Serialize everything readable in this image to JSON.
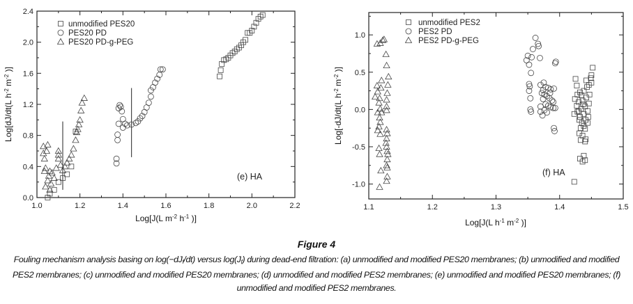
{
  "chart_data": [
    {
      "type": "scatter",
      "panel": "(e) HA",
      "xlabel": [
        "Log[J(L m",
        "-2",
        "h",
        "-1",
        ")]"
      ],
      "ylabel": [
        "Log[dJ/dt(L h",
        "-2",
        "m",
        "-2",
        ")]"
      ],
      "xlim": [
        1.0,
        2.2
      ],
      "ylim": [
        0.0,
        2.4
      ],
      "xticks": [
        "1.0",
        "1.2",
        "1.4",
        "1.6",
        "1.8",
        "2.0",
        "2.2"
      ],
      "yticks": [
        "0.0",
        "0.4",
        "0.8",
        "1.2",
        "1.6",
        "2.0",
        "2.4"
      ],
      "grid": false,
      "legend_position": "top-left",
      "vertical_markers_x": [
        1.12,
        1.44
      ],
      "series": [
        {
          "name": "unmodified PES20",
          "marker": "square",
          "points": [
            [
              1.05,
              0.0
            ],
            [
              1.06,
              0.05
            ],
            [
              1.08,
              0.1
            ],
            [
              1.1,
              0.2
            ],
            [
              1.12,
              0.25
            ],
            [
              1.14,
              0.3
            ],
            [
              1.16,
              0.4
            ],
            [
              1.18,
              0.85
            ],
            [
              1.85,
              1.56
            ],
            [
              1.855,
              1.64
            ],
            [
              1.86,
              1.72
            ],
            [
              1.87,
              1.77
            ],
            [
              1.88,
              1.78
            ],
            [
              1.89,
              1.8
            ],
            [
              1.9,
              1.83
            ],
            [
              1.91,
              1.86
            ],
            [
              1.92,
              1.88
            ],
            [
              1.93,
              1.91
            ],
            [
              1.94,
              1.93
            ],
            [
              1.95,
              1.96
            ],
            [
              1.96,
              2.0
            ],
            [
              1.97,
              2.03
            ],
            [
              1.98,
              2.12
            ],
            [
              1.99,
              2.12
            ],
            [
              2.0,
              2.15
            ],
            [
              2.01,
              2.2
            ],
            [
              2.02,
              2.25
            ],
            [
              2.03,
              2.3
            ],
            [
              2.04,
              2.33
            ],
            [
              2.05,
              2.35
            ]
          ]
        },
        {
          "name": "PES20 PD",
          "marker": "circle",
          "points": [
            [
              1.37,
              0.44
            ],
            [
              1.37,
              0.5
            ],
            [
              1.375,
              0.74
            ],
            [
              1.375,
              0.81
            ],
            [
              1.38,
              0.95
            ],
            [
              1.38,
              1.15
            ],
            [
              1.385,
              1.19
            ],
            [
              1.39,
              1.17
            ],
            [
              1.395,
              1.11
            ],
            [
              1.4,
              1.01
            ],
            [
              1.4,
              0.9
            ],
            [
              1.41,
              0.95
            ],
            [
              1.42,
              0.93
            ],
            [
              1.44,
              0.94
            ],
            [
              1.46,
              0.96
            ],
            [
              1.47,
              0.98
            ],
            [
              1.48,
              1.02
            ],
            [
              1.49,
              1.05
            ],
            [
              1.5,
              1.1
            ],
            [
              1.51,
              1.16
            ],
            [
              1.52,
              1.22
            ],
            [
              1.53,
              1.3
            ],
            [
              1.53,
              1.38
            ],
            [
              1.54,
              1.42
            ],
            [
              1.55,
              1.48
            ],
            [
              1.56,
              1.53
            ],
            [
              1.57,
              1.58
            ],
            [
              1.575,
              1.65
            ],
            [
              1.585,
              1.65
            ]
          ]
        },
        {
          "name": "PES20 PD-g-PEG",
          "marker": "triangle",
          "points": [
            [
              1.03,
              0.66
            ],
            [
              1.03,
              0.57
            ],
            [
              1.035,
              0.5
            ],
            [
              1.04,
              0.38
            ],
            [
              1.035,
              0.34
            ],
            [
              1.04,
              0.14
            ],
            [
              1.045,
              0.6
            ],
            [
              1.05,
              0.68
            ],
            [
              1.05,
              0.22
            ],
            [
              1.055,
              0.28
            ],
            [
              1.06,
              0.34
            ],
            [
              1.06,
              0.1
            ],
            [
              1.065,
              0.18
            ],
            [
              1.07,
              0.32
            ],
            [
              1.08,
              0.25
            ],
            [
              1.09,
              0.38
            ],
            [
              1.1,
              0.6
            ],
            [
              1.1,
              0.55
            ],
            [
              1.1,
              0.5
            ],
            [
              1.11,
              0.42
            ],
            [
              1.12,
              0.35
            ],
            [
              1.13,
              0.4
            ],
            [
              1.14,
              0.45
            ],
            [
              1.15,
              0.5
            ],
            [
              1.16,
              0.55
            ],
            [
              1.17,
              0.63
            ],
            [
              1.18,
              0.74
            ],
            [
              1.185,
              0.84
            ],
            [
              1.19,
              0.88
            ],
            [
              1.195,
              0.94
            ],
            [
              1.2,
              1.0
            ],
            [
              1.205,
              1.12
            ],
            [
              1.21,
              1.22
            ],
            [
              1.22,
              1.28
            ]
          ]
        }
      ]
    },
    {
      "type": "scatter",
      "panel": "(f) HA",
      "xlabel": [
        "Log[J(L h",
        "-1",
        "m",
        "-2",
        ")]"
      ],
      "ylabel": [
        "Log[-dJ/dt(L h",
        "-2",
        "m",
        "-2",
        ")]"
      ],
      "xlim": [
        1.1,
        1.5
      ],
      "ylim": [
        -1.2,
        1.3
      ],
      "xticks": [
        "1.1",
        "1.2",
        "1.3",
        "1.4",
        "1.5"
      ],
      "yticks": [
        "-1.0",
        "-0.5",
        "0.0",
        "0.5",
        "1.0"
      ],
      "grid": false,
      "legend_position": "top-left",
      "series": [
        {
          "name": "unmodified PES2",
          "marker": "square",
          "points": [
            [
              1.452,
              0.56
            ],
            [
              1.45,
              0.46
            ],
            [
              1.449,
              0.42
            ],
            [
              1.442,
              0.39
            ],
            [
              1.425,
              0.41
            ],
            [
              1.427,
              0.32
            ],
            [
              1.45,
              0.36
            ],
            [
              1.446,
              0.33
            ],
            [
              1.443,
              0.3
            ],
            [
              1.438,
              0.25
            ],
            [
              1.432,
              0.23
            ],
            [
              1.428,
              0.2
            ],
            [
              1.424,
              0.14
            ],
            [
              1.447,
              0.2
            ],
            [
              1.442,
              0.16
            ],
            [
              1.436,
              0.12
            ],
            [
              1.43,
              0.1
            ],
            [
              1.427,
              0.05
            ],
            [
              1.446,
              0.08
            ],
            [
              1.44,
              0.04
            ],
            [
              1.434,
              0.01
            ],
            [
              1.43,
              -0.02
            ],
            [
              1.423,
              -0.06
            ],
            [
              1.444,
              -0.02
            ],
            [
              1.438,
              -0.06
            ],
            [
              1.432,
              -0.1
            ],
            [
              1.445,
              -0.1
            ],
            [
              1.441,
              -0.14
            ],
            [
              1.435,
              -0.18
            ],
            [
              1.431,
              -0.14
            ],
            [
              1.444,
              -0.18
            ],
            [
              1.438,
              -0.22
            ],
            [
              1.433,
              -0.25
            ],
            [
              1.44,
              -0.26
            ],
            [
              1.431,
              -0.32
            ],
            [
              1.436,
              -0.35
            ],
            [
              1.441,
              -0.4
            ],
            [
              1.44,
              -0.43
            ],
            [
              1.433,
              -0.41
            ],
            [
              1.438,
              -0.62
            ],
            [
              1.432,
              -0.66
            ],
            [
              1.436,
              -0.7
            ],
            [
              1.44,
              -0.68
            ],
            [
              1.423,
              -0.97
            ],
            [
              1.434,
              0.19
            ],
            [
              1.437,
              0.07
            ],
            [
              1.428,
              -0.03
            ]
          ]
        },
        {
          "name": "PES2 PD",
          "marker": "circle",
          "points": [
            [
              1.362,
              0.96
            ],
            [
              1.366,
              0.88
            ],
            [
              1.367,
              0.85
            ],
            [
              1.358,
              0.81
            ],
            [
              1.35,
              0.72
            ],
            [
              1.356,
              0.7
            ],
            [
              1.369,
              0.69
            ],
            [
              1.348,
              0.66
            ],
            [
              1.352,
              0.6
            ],
            [
              1.394,
              0.64
            ],
            [
              1.393,
              0.62
            ],
            [
              1.355,
              0.49
            ],
            [
              1.352,
              0.34
            ],
            [
              1.353,
              0.31
            ],
            [
              1.352,
              0.25
            ],
            [
              1.354,
              0.15
            ],
            [
              1.354,
              0.0
            ],
            [
              1.355,
              -0.03
            ],
            [
              1.37,
              0.33
            ],
            [
              1.375,
              0.36
            ],
            [
              1.378,
              0.3
            ],
            [
              1.382,
              0.29
            ],
            [
              1.386,
              0.27
            ],
            [
              1.391,
              0.28
            ],
            [
              1.372,
              0.22
            ],
            [
              1.376,
              0.2
            ],
            [
              1.38,
              0.18
            ],
            [
              1.384,
              0.15
            ],
            [
              1.388,
              0.12
            ],
            [
              1.39,
              0.1
            ],
            [
              1.374,
              0.14
            ],
            [
              1.378,
              0.07
            ],
            [
              1.382,
              0.05
            ],
            [
              1.386,
              0.03
            ],
            [
              1.39,
              0.02
            ],
            [
              1.393,
              0.02
            ],
            [
              1.37,
              0.04
            ],
            [
              1.37,
              -0.03
            ],
            [
              1.376,
              -0.01
            ],
            [
              1.38,
              -0.04
            ],
            [
              1.373,
              -0.08
            ],
            [
              1.391,
              -0.25
            ],
            [
              1.392,
              -0.29
            ],
            [
              1.385,
              0.22
            ],
            [
              1.374,
              0.26
            ]
          ]
        },
        {
          "name": "PES2 PD-g-PEG",
          "marker": "triangle",
          "points": [
            [
              1.113,
              0.88
            ],
            [
              1.118,
              0.89
            ],
            [
              1.122,
              0.93
            ],
            [
              1.124,
              0.94
            ],
            [
              1.127,
              0.74
            ],
            [
              1.128,
              0.59
            ],
            [
              1.131,
              0.44
            ],
            [
              1.13,
              0.33
            ],
            [
              1.129,
              0.22
            ],
            [
              1.128,
              0.13
            ],
            [
              1.128,
              0.04
            ],
            [
              1.128,
              -0.01
            ],
            [
              1.12,
              0.39
            ],
            [
              1.119,
              0.29
            ],
            [
              1.113,
              0.32
            ],
            [
              1.11,
              0.17
            ],
            [
              1.114,
              0.24
            ],
            [
              1.116,
              0.09
            ],
            [
              1.117,
              0.15
            ],
            [
              1.118,
              0.01
            ],
            [
              1.12,
              -0.04
            ],
            [
              1.114,
              -0.04
            ],
            [
              1.117,
              -0.11
            ],
            [
              1.118,
              -0.17
            ],
            [
              1.116,
              -0.23
            ],
            [
              1.114,
              -0.28
            ],
            [
              1.118,
              -0.33
            ],
            [
              1.128,
              -0.27
            ],
            [
              1.129,
              -0.32
            ],
            [
              1.128,
              -0.39
            ],
            [
              1.127,
              -0.45
            ],
            [
              1.128,
              -0.5
            ],
            [
              1.129,
              -0.56
            ],
            [
              1.13,
              -0.6
            ],
            [
              1.129,
              -0.67
            ],
            [
              1.128,
              -0.75
            ],
            [
              1.129,
              -0.78
            ],
            [
              1.129,
              -0.9
            ],
            [
              1.128,
              -0.96
            ],
            [
              1.116,
              -0.52
            ],
            [
              1.117,
              -0.6
            ],
            [
              1.119,
              -0.82
            ],
            [
              1.117,
              -1.04
            ]
          ]
        }
      ]
    }
  ],
  "caption": {
    "title": "Figure 4",
    "seg1": "Fouling mechanism analysis basing on log(−dJ",
    "sub1": "f",
    "seg2": "/dt) versus log(J",
    "sub2": "f",
    "seg3": ") during dead-end filtration: (a) unmodified and modified PES20 membranes; (b) unmodified and modified PES2 membranes; (c) unmodified and modified PES20 membranes; (d) unmodified and modified PES2 membranes; (e) unmodified and modified PES20 membranes; (f) unmodified and modified PES2 membranes."
  }
}
